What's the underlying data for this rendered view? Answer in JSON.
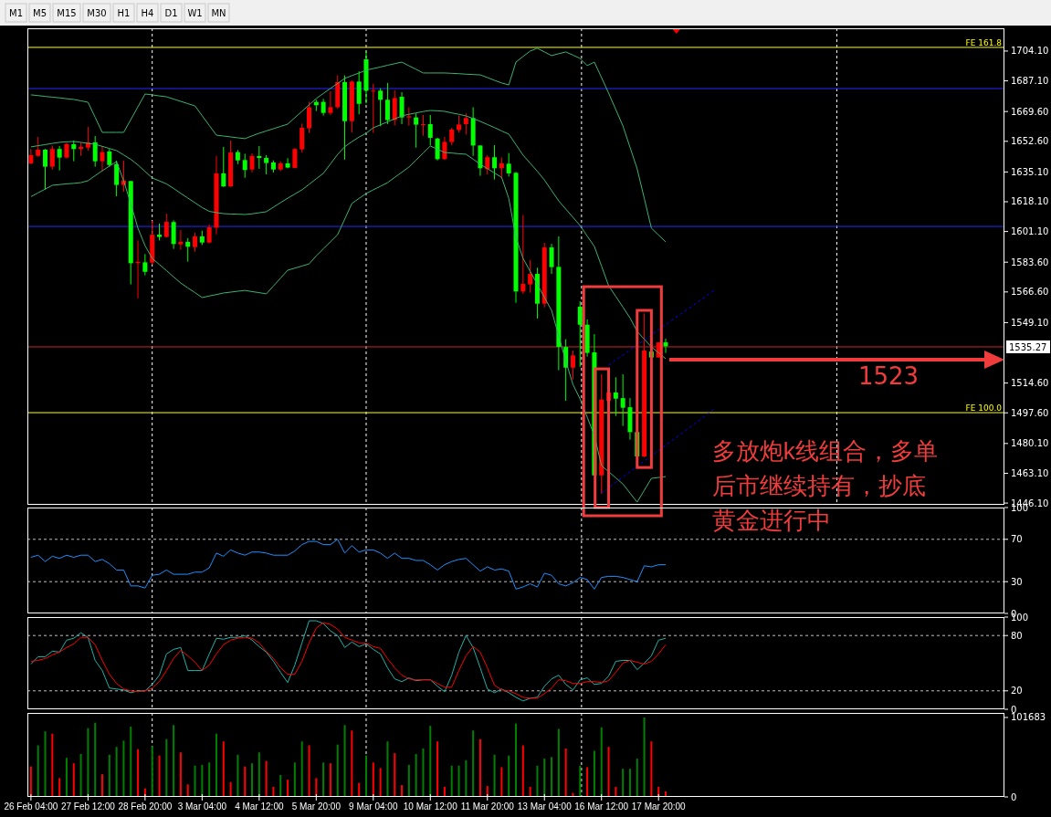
{
  "chart_data": [
    {
      "type": "candlestick",
      "tick_labels": "y",
      "ylim": [
        1445.1,
        1717.1
      ],
      "ohlc": [
        [
          1644.7,
          1648.2,
          1639.5,
          1640.0
        ],
        [
          1647.8,
          1655.1,
          1643.8,
          1644.3
        ],
        [
          1638.1,
          1648.2,
          1625.0,
          1647.8
        ],
        [
          1648.2,
          1650.2,
          1636.5,
          1638.1
        ],
        [
          1643.3,
          1649.9,
          1636.0,
          1648.2
        ],
        [
          1651.1,
          1651.6,
          1642.9,
          1643.3
        ],
        [
          1648.2,
          1653.0,
          1641.2,
          1650.9
        ],
        [
          1649.4,
          1652.0,
          1644.3,
          1648.2
        ],
        [
          1652.0,
          1660.8,
          1647.3,
          1649.0
        ],
        [
          1641.2,
          1655.6,
          1638.1,
          1652.0
        ],
        [
          1646.4,
          1649.9,
          1635.6,
          1641.2
        ],
        [
          1639.1,
          1648.2,
          1638.1,
          1646.8
        ],
        [
          1627.7,
          1641.6,
          1621.2,
          1639.5
        ],
        [
          1630.3,
          1641.6,
          1623.8,
          1627.7
        ],
        [
          1583.0,
          1629.9,
          1570.9,
          1629.9
        ],
        [
          1583.7,
          1596.0,
          1563.0,
          1583.0
        ],
        [
          1578.1,
          1588.2,
          1576.1,
          1583.5
        ],
        [
          1599.3,
          1607.2,
          1582.2,
          1583.4
        ],
        [
          1598.0,
          1605.6,
          1596.0,
          1599.3
        ],
        [
          1606.6,
          1611.3,
          1597.8,
          1598.0
        ],
        [
          1594.0,
          1607.5,
          1591.2,
          1606.5
        ],
        [
          1595.2,
          1601.9,
          1590.7,
          1593.8
        ],
        [
          1592.4,
          1597.3,
          1583.9,
          1595.2
        ],
        [
          1598.3,
          1600.4,
          1589.6,
          1592.2
        ],
        [
          1594.8,
          1601.6,
          1593.4,
          1598.3
        ],
        [
          1603.5,
          1605.1,
          1594.3,
          1594.8
        ],
        [
          1634.3,
          1644.2,
          1599.5,
          1603.3
        ],
        [
          1626.8,
          1649.4,
          1626.6,
          1634.3
        ],
        [
          1646.2,
          1653.0,
          1626.6,
          1626.8
        ],
        [
          1641.7,
          1647.6,
          1639.6,
          1646.4
        ],
        [
          1636.2,
          1645.5,
          1631.8,
          1641.9
        ],
        [
          1644.2,
          1645.7,
          1634.8,
          1636.5
        ],
        [
          1643.1,
          1649.9,
          1636.9,
          1644.2
        ],
        [
          1640.2,
          1644.7,
          1633.7,
          1643.1
        ],
        [
          1636.5,
          1641.7,
          1634.8,
          1640.5
        ],
        [
          1640.0,
          1641.0,
          1635.6,
          1636.5
        ],
        [
          1637.6,
          1642.9,
          1637.2,
          1640.0
        ],
        [
          1648.2,
          1648.7,
          1637.2,
          1637.4
        ],
        [
          1660.3,
          1662.7,
          1646.1,
          1648.0
        ],
        [
          1672.0,
          1675.1,
          1657.4,
          1660.0
        ],
        [
          1673.2,
          1676.3,
          1669.9,
          1675.1
        ],
        [
          1668.8,
          1676.8,
          1667.3,
          1675.1
        ],
        [
          1672.1,
          1681.2,
          1667.6,
          1668.8
        ],
        [
          1686.4,
          1690.2,
          1671.1,
          1672.1
        ],
        [
          1664.1,
          1690.2,
          1642.1,
          1686.4
        ],
        [
          1686.7,
          1687.3,
          1657.7,
          1664.1
        ],
        [
          1674.0,
          1692.5,
          1668.1,
          1686.7
        ],
        [
          1681.5,
          1703.7,
          1674.2,
          1699.4
        ],
        [
          1681.5,
          1685.5,
          1657.4,
          1681.2
        ],
        [
          1676.3,
          1682.9,
          1661.2,
          1681.5
        ],
        [
          1664.7,
          1685.9,
          1662.4,
          1676.3
        ],
        [
          1677.3,
          1681.7,
          1661.7,
          1664.7
        ],
        [
          1666.2,
          1680.6,
          1662.4,
          1678.0
        ],
        [
          1666.9,
          1672.0,
          1661.5,
          1666.2
        ],
        [
          1662.1,
          1668.5,
          1649.0,
          1666.2
        ],
        [
          1662.4,
          1667.6,
          1655.8,
          1662.1
        ],
        [
          1654.6,
          1667.6,
          1650.2,
          1662.4
        ],
        [
          1642.4,
          1654.6,
          1641.7,
          1654.2
        ],
        [
          1652.3,
          1655.1,
          1642.1,
          1642.4
        ],
        [
          1659.3,
          1660.3,
          1650.4,
          1652.2
        ],
        [
          1662.2,
          1667.3,
          1657.7,
          1659.0
        ],
        [
          1665.9,
          1668.5,
          1656.5,
          1662.4
        ],
        [
          1650.2,
          1672.0,
          1644.3,
          1665.9
        ],
        [
          1637.2,
          1650.2,
          1632.9,
          1650.2
        ],
        [
          1643.5,
          1644.7,
          1633.6,
          1636.7
        ],
        [
          1637.2,
          1650.4,
          1630.8,
          1643.5
        ],
        [
          1640.0,
          1643.3,
          1631.3,
          1637.2
        ],
        [
          1634.3,
          1645.9,
          1632.5,
          1639.8
        ],
        [
          1566.9,
          1635.1,
          1560.4,
          1634.6
        ],
        [
          1571.2,
          1610.5,
          1565.6,
          1566.9
        ],
        [
          1576.9,
          1584.8,
          1566.2,
          1570.9
        ],
        [
          1559.9,
          1580.4,
          1551.4,
          1576.9
        ],
        [
          1592.0,
          1594.6,
          1557.8,
          1559.9
        ],
        [
          1580.8,
          1594.0,
          1576.9,
          1592.0
        ],
        [
          1535.2,
          1598.3,
          1521.9,
          1580.9
        ],
        [
          1523.4,
          1539.6,
          1504.5,
          1535.2
        ],
        [
          1530.4,
          1533.2,
          1516.6,
          1523.4
        ],
        [
          1547.9,
          1561.3,
          1523.9,
          1558.2
        ],
        [
          1531.8,
          1550.9,
          1529.7,
          1547.9
        ],
        [
          1461.9,
          1542.5,
          1461.9,
          1532.1
        ],
        [
          1505.2,
          1519.6,
          1451.3,
          1461.9
        ],
        [
          1509.2,
          1509.2,
          1504.5,
          1504.5
        ],
        [
          1505.7,
          1517.9,
          1495.8,
          1509.2
        ],
        [
          1500.5,
          1519.6,
          1490.1,
          1506.0
        ],
        [
          1486.6,
          1506.0,
          1482.3,
          1500.8
        ],
        [
          1472.7,
          1486.6,
          1472.7,
          1486.6
        ],
        [
          1533.2,
          1554.3,
          1472.3,
          1472.7
        ],
        [
          1529.2,
          1532.6,
          1529.2,
          1532.6
        ],
        [
          1537.8,
          1537.8,
          1529.2,
          1529.2
        ],
        [
          1535.6,
          1539.9,
          1531.8,
          1537.8
        ],
        null,
        null,
        null,
        null,
        null,
        null,
        null,
        null,
        null,
        null,
        null,
        null,
        null,
        null,
        null,
        null,
        null,
        null,
        null,
        null,
        null,
        null,
        null,
        null,
        null,
        null,
        null,
        null,
        null,
        null,
        null,
        null,
        null,
        null,
        null,
        null,
        null,
        null,
        null,
        null,
        null,
        null,
        null,
        null,
        null,
        null,
        null
      ],
      "colors": [
        "#ff0000",
        "#ff0000",
        "#00ff00",
        "#ff0000",
        "#00ff00",
        "#ff0000",
        "#00ff00",
        "#ff0000",
        "#ff0000",
        "#00ff00",
        "#ff0000",
        "#00ff00",
        "#00ff00",
        "#ff0000",
        "#00ff00",
        "#ff0000",
        "#00ff00",
        "#ff0000",
        "#00ff00",
        "#ff0000",
        "#00ff00",
        "#ff0000",
        "#00ff00",
        "#ff0000",
        "#00ff00",
        "#ff0000",
        "#ff0000",
        "#00ff00",
        "#ff0000",
        "#00ff00",
        "#00ff00",
        "#ff0000",
        "#00ff00",
        "#00ff00",
        "#00ff00",
        "#ff0000",
        "#00ff00",
        "#ff0000",
        "#ff0000",
        "#ff0000",
        "#00ff00",
        "#00ff00",
        "#ff0000",
        "#ff0000",
        "#00ff00",
        "#ff0000",
        "#00ff00",
        "#00ff00",
        "#ff0000",
        "#00ff00",
        "#00ff00",
        "#ff0000",
        "#00ff00",
        "#ff0000",
        "#00ff00",
        "#ff0000",
        "#00ff00",
        "#00ff00",
        "#ff0000",
        "#ff0000",
        "#ff0000",
        "#ff0000",
        "#00ff00",
        "#00ff00",
        "#ff0000",
        "#00ff00",
        "#ff0000",
        "#00ff00",
        "#00ff00",
        "#ff0000",
        "#ff0000",
        "#00ff00",
        "#ff0000",
        "#00ff00",
        "#00ff00",
        "#00ff00",
        "#ff0000",
        "#00ff00",
        "#00ff00",
        "#00ff00",
        "#ff0000",
        "#ff0000",
        "#00ff00",
        "#00ff00",
        "#00ff00",
        "#00ff00",
        "#ff0000",
        "#00ff00",
        "#ff0000",
        "#00ff00",
        null,
        null,
        null,
        null,
        null,
        null,
        null,
        null,
        null,
        null,
        null,
        null,
        null,
        null,
        null,
        null,
        null,
        null,
        null,
        null,
        null,
        null,
        null,
        null,
        null,
        null,
        null,
        null,
        null,
        null,
        null,
        null,
        null,
        null,
        null,
        null,
        null,
        null,
        null,
        null,
        null,
        null,
        null,
        null,
        null,
        null,
        null
      ],
      "series": [
        {
          "type": "line",
          "color": "#3cb371",
          "values": [
            1679.1,
            1678.7,
            1678.2,
            1677.8,
            1677.4,
            1676.9,
            1676.5,
            1675.7,
            1674.9,
            1666.3,
            1657.7,
            1657.7,
            1657.7,
            1657.7,
            1665.0,
            1672.3,
            1679.6,
            1679.1,
            1678.5,
            1678.0,
            1676.7,
            1675.4,
            1674.1,
            1672.8,
            1667.2,
            1661.7,
            1656.1,
            1655.6,
            1655.1,
            1654.6,
            1654.1,
            1655.7,
            1657.2,
            1658.5,
            1659.8,
            1661.1,
            1662.4,
            1666.1,
            1669.7,
            1673.4,
            1677.0,
            1679.9,
            1682.8,
            1685.6,
            1688.5,
            1690.1,
            1691.6,
            1693.2,
            1694.1,
            1695.0,
            1696.0,
            1696.9,
            1697.8,
            1695.7,
            1693.7,
            1691.6,
            1691.6,
            1691.6,
            1691.6,
            1691.4,
            1691.2,
            1690.9,
            1690.7,
            1690.5,
            1689.0,
            1687.4,
            1685.9,
            1684.8,
            1697.8,
            1701.0,
            1704.1,
            1705.7,
            1703.6,
            1701.5,
            1702.6,
            1703.6,
            1701.8,
            1699.9,
            1695.8,
            1697.8,
            1689.0,
            1680.1,
            1670.8,
            1661.4,
            1649.2,
            1636.9,
            1620.0,
            1603.0,
            1599.1,
            1595.2,
            null,
            null,
            null,
            null,
            null,
            null,
            null,
            null,
            null,
            null,
            null,
            null,
            null,
            null,
            null,
            null,
            null,
            null,
            null,
            null,
            null,
            null,
            null,
            null,
            null,
            null,
            null,
            null,
            null,
            null,
            null,
            null,
            null,
            null,
            null,
            null,
            null,
            null,
            null,
            null,
            null,
            null,
            null,
            null,
            null,
            null,
            null
          ]
        },
        {
          "type": "line",
          "color": "#3cb371",
          "values": [
            1649.4,
            1650.1,
            1650.7,
            1651.4,
            1652.0,
            1652.3,
            1652.5,
            1652.0,
            1651.4,
            1650.9,
            1649.7,
            1648.5,
            1647.3,
            1644.8,
            1642.3,
            1639.1,
            1635.4,
            1631.7,
            1630.0,
            1628.3,
            1625.7,
            1622.9,
            1620.2,
            1617.5,
            1614.8,
            1612.6,
            1611.9,
            1611.3,
            1611.1,
            1611.0,
            1610.8,
            1611.2,
            1611.8,
            1612.4,
            1615.0,
            1617.6,
            1620.1,
            1622.5,
            1624.9,
            1628.0,
            1631.2,
            1634.3,
            1639.7,
            1645.1,
            1649.5,
            1652.4,
            1655.0,
            1657.2,
            1660.3,
            1662.0,
            1663.7,
            1665.4,
            1667.1,
            1668.0,
            1668.8,
            1669.6,
            1670.2,
            1670.0,
            1669.7,
            1668.8,
            1668.0,
            1667.1,
            1665.6,
            1664.0,
            1662.2,
            1660.4,
            1658.5,
            1656.7,
            1650.7,
            1644.7,
            1640.1,
            1635.5,
            1630.5,
            1624.5,
            1618.6,
            1613.9,
            1609.2,
            1604.5,
            1598.5,
            1592.6,
            1581.4,
            1570.2,
            1564.1,
            1558.0,
            1551.8,
            1544.1,
            1539.6,
            1535.2,
            1531.9,
            1528.5,
            null,
            null,
            null,
            null,
            null,
            null,
            null,
            null,
            null,
            null,
            null,
            null,
            null,
            null,
            null,
            null,
            null,
            null,
            null,
            null,
            null,
            null,
            null,
            null,
            null,
            null,
            null,
            null,
            null,
            null,
            null,
            null,
            null,
            null,
            null,
            null,
            null,
            null,
            null,
            null,
            null,
            null,
            null,
            null,
            null,
            null,
            null
          ]
        },
        {
          "type": "line",
          "color": "#3cb371",
          "values": [
            1621.0,
            1623.2,
            1625.3,
            1627.5,
            1627.9,
            1628.3,
            1628.6,
            1629.0,
            1630.1,
            1633.0,
            1635.8,
            1638.4,
            1641.0,
            1630.0,
            1617.0,
            1603.0,
            1593.0,
            1585.8,
            1582.3,
            1578.8,
            1575.2,
            1571.7,
            1568.9,
            1566.2,
            1563.4,
            1564.3,
            1565.1,
            1566.0,
            1566.5,
            1567.0,
            1567.5,
            1566.8,
            1566.2,
            1565.5,
            1570.0,
            1574.5,
            1579.0,
            1580.2,
            1581.4,
            1582.6,
            1587.2,
            1591.2,
            1595.3,
            1599.3,
            1608.2,
            1617.1,
            1620.0,
            1622.8,
            1624.9,
            1626.9,
            1629.0,
            1632.0,
            1634.9,
            1637.9,
            1641.9,
            1645.9,
            1649.9,
            1648.1,
            1646.2,
            1645.9,
            1645.5,
            1645.2,
            1642.4,
            1639.5,
            1637.0,
            1634.5,
            1632.0,
            1620.0,
            1597.8,
            1585.8,
            1578.4,
            1571.0,
            1563.5,
            1556.1,
            1541.5,
            1527.0,
            1513.8,
            1505.5,
            1495.1,
            1484.7,
            1467.5,
            1464.0,
            1460.5,
            1457.0,
            1451.8,
            1446.6,
            1453.4,
            1460.2,
            1460.7,
            1461.2,
            null,
            null,
            null,
            null,
            null,
            null,
            null,
            null,
            null,
            null,
            null,
            null,
            null,
            null,
            null,
            null,
            null,
            null,
            null,
            null,
            null,
            null,
            null,
            null,
            null,
            null,
            null,
            null,
            null,
            null,
            null,
            null,
            null,
            null,
            null,
            null,
            null,
            null,
            null,
            null,
            null,
            null,
            null,
            null,
            null,
            null,
            null
          ]
        },
        {
          "type": "line",
          "color": "#0000ff",
          "line_style": "dashed",
          "values": [
            null,
            null,
            null,
            null,
            null,
            null,
            null,
            null,
            null,
            null,
            null,
            null,
            null,
            null,
            null,
            null,
            null,
            null,
            null,
            null,
            null,
            null,
            null,
            null,
            null,
            null,
            null,
            null,
            null,
            null,
            null,
            null,
            null,
            null,
            null,
            null,
            null,
            null,
            null,
            null,
            null,
            null,
            null,
            null,
            null,
            null,
            null,
            null,
            null,
            null,
            null,
            null,
            null,
            null,
            null,
            null,
            null,
            null,
            null,
            null,
            null,
            null,
            null,
            null,
            null,
            null,
            null,
            null,
            null,
            null,
            null,
            null,
            null,
            null,
            null,
            null,
            null,
            null,
            null,
            null,
            null,
            1524.8,
            1527.7,
            1530.6,
            1533.5,
            1536.4,
            1539.2,
            1542.1,
            1545.0,
            1547.9,
            1550.8,
            1553.7,
            1556.6,
            1559.4,
            1562.3,
            1565.2,
            1568.1,
            null,
            null,
            null,
            null,
            null,
            null,
            null,
            null,
            null,
            null,
            null,
            null,
            null,
            null,
            null,
            null,
            null,
            null,
            null,
            null,
            null,
            null,
            null,
            null,
            null,
            null,
            null,
            null,
            null,
            null,
            null,
            null,
            null,
            null,
            null,
            null,
            null,
            null,
            null,
            null
          ]
        },
        {
          "type": "line",
          "color": "#0000ff",
          "line_style": "dashed",
          "values": [
            null,
            null,
            null,
            null,
            null,
            null,
            null,
            null,
            null,
            null,
            null,
            null,
            null,
            null,
            null,
            null,
            null,
            null,
            null,
            null,
            null,
            null,
            null,
            null,
            null,
            null,
            null,
            null,
            null,
            null,
            null,
            null,
            null,
            null,
            null,
            null,
            null,
            null,
            null,
            null,
            null,
            null,
            null,
            null,
            null,
            null,
            null,
            null,
            null,
            null,
            null,
            null,
            null,
            null,
            null,
            null,
            null,
            null,
            null,
            null,
            null,
            null,
            null,
            null,
            null,
            null,
            null,
            null,
            null,
            null,
            null,
            null,
            null,
            null,
            null,
            null,
            null,
            null,
            null,
            null,
            1451.8,
            1454.8,
            1457.9,
            1460.9,
            1463.9,
            1467.0,
            1470.0,
            1473.0,
            1476.1,
            1479.1,
            1482.1,
            1485.1,
            1488.2,
            1491.2,
            1494.2,
            1497.3,
            1500.3,
            null,
            null,
            null,
            null,
            null,
            null,
            null,
            null,
            null,
            null,
            null,
            null,
            null,
            null,
            null,
            null,
            null,
            null,
            null,
            null,
            null,
            null,
            null,
            null,
            null,
            null,
            null,
            null,
            null,
            null,
            null,
            null,
            null,
            null,
            null,
            null,
            null,
            null,
            null,
            null
          ]
        }
      ],
      "yticks": [
        {
          "value": 1704.1,
          "label": "1704.10"
        },
        {
          "value": 1687.1,
          "label": "1687.10"
        },
        {
          "value": 1669.6,
          "label": "1669.60"
        },
        {
          "value": 1652.6,
          "label": "1652.60"
        },
        {
          "value": 1635.1,
          "label": "1635.10"
        },
        {
          "value": 1618.1,
          "label": "1618.10"
        },
        {
          "value": 1601.1,
          "label": "1601.10"
        },
        {
          "value": 1583.6,
          "label": "1583.60"
        },
        {
          "value": 1566.6,
          "label": "1566.60"
        },
        {
          "value": 1549.1,
          "label": "1549.10"
        },
        {
          "value": 1514.6,
          "label": "1514.60"
        },
        {
          "value": 1497.6,
          "label": "1497.60"
        },
        {
          "value": 1480.1,
          "label": "1480.10"
        },
        {
          "value": 1463.1,
          "label": "1463.10"
        },
        {
          "value": 1446.1,
          "label": "1446.10"
        }
      ],
      "ref_lines": [
        {
          "axis": "y",
          "value": 1706.2,
          "label": "FE 161.8",
          "color": "#ffff00"
        },
        {
          "axis": "y",
          "value": 1497.7,
          "label": "FE 100.0",
          "color": "#ffff00"
        },
        {
          "axis": "y",
          "value": 1682.7,
          "color": "#2828ff"
        },
        {
          "axis": "y",
          "value": 1604.0,
          "color": "#2828ff"
        },
        {
          "axis": "y",
          "value": 1535.27,
          "label": "1535.27",
          "color": "#c82828"
        }
      ],
      "annotations": [
        "M1",
        "M5",
        "M15",
        "M30",
        "H1",
        "H4",
        "D1",
        "W1",
        "MN",
        "1523",
        "多放炮k线组合，多单后市继续持有，抄底黄金进行中"
      ]
    },
    {
      "type": "line",
      "tick_labels": "y",
      "ylim": [
        0,
        100
      ],
      "yticks": [
        0,
        30,
        70,
        100
      ],
      "series": [
        {
          "color": "#1e90ff",
          "values": [
            53,
            55,
            49,
            54,
            52,
            55,
            53,
            55,
            55,
            49,
            51,
            47,
            41,
            41,
            26,
            26,
            24,
            36,
            37,
            41,
            37,
            37,
            37,
            39,
            39,
            43,
            57,
            54,
            60,
            57,
            55,
            58,
            58,
            57,
            55,
            55,
            55,
            59,
            65,
            68,
            68,
            65,
            65,
            70,
            57,
            64,
            58,
            60,
            60,
            57,
            52,
            57,
            52,
            52,
            50,
            50,
            46,
            41,
            46,
            49,
            51,
            52,
            46,
            40,
            44,
            41,
            42,
            40,
            23,
            25,
            28,
            25,
            38,
            36,
            28,
            26,
            29,
            34,
            32,
            23,
            34,
            35,
            35,
            34,
            32,
            30,
            45,
            44,
            46,
            46
          ]
        }
      ],
      "ref_lines": [
        {
          "axis": "y",
          "value": 70,
          "color": "#c0c0c0",
          "line_style": "dashed"
        },
        {
          "axis": "y",
          "value": 30,
          "color": "#c0c0c0",
          "line_style": "dashed"
        }
      ]
    },
    {
      "type": "line",
      "tick_labels": "y",
      "ylim": [
        0,
        100
      ],
      "yticks": [
        0,
        20,
        80,
        100
      ],
      "series": [
        {
          "color": "#20b2aa",
          "values": [
            49,
            57,
            57,
            63,
            62,
            75,
            77,
            83,
            78,
            53,
            42,
            23,
            22,
            21,
            18,
            20,
            20,
            27,
            37,
            60,
            65,
            67,
            42,
            42,
            42,
            60,
            77,
            76,
            78,
            78,
            80,
            75,
            68,
            62,
            52,
            40,
            29,
            48,
            72,
            96,
            96,
            93,
            85,
            80,
            67,
            73,
            68,
            71,
            65,
            60,
            45,
            33,
            30,
            34,
            31,
            32,
            32,
            25,
            19,
            37,
            62,
            80,
            67,
            45,
            22,
            18,
            22,
            18,
            13,
            9,
            12,
            13,
            25,
            33,
            37,
            27,
            21,
            32,
            34,
            27,
            28,
            36,
            52,
            53,
            53,
            43,
            50,
            58,
            75,
            77
          ]
        },
        {
          "color": "#ff0000",
          "values": [
            52,
            53,
            55,
            59,
            62,
            67,
            71,
            78,
            78,
            70,
            53,
            38,
            28,
            22,
            20,
            19,
            20,
            23,
            30,
            42,
            55,
            64,
            58,
            51,
            42,
            48,
            60,
            70,
            75,
            77,
            78,
            77,
            72,
            63,
            55,
            45,
            38,
            38,
            52,
            72,
            88,
            94,
            92,
            87,
            78,
            75,
            72,
            72,
            68,
            66,
            55,
            45,
            37,
            33,
            32,
            32,
            32,
            28,
            24,
            24,
            42,
            58,
            68,
            62,
            45,
            26,
            21,
            20,
            17,
            13,
            12,
            12,
            17,
            23,
            32,
            31,
            28,
            28,
            30,
            30,
            29,
            31,
            40,
            50,
            53,
            51,
            49,
            52,
            60,
            70
          ]
        }
      ],
      "ref_lines": [
        {
          "axis": "y",
          "value": 80,
          "color": "#c0c0c0",
          "line_style": "dashed"
        },
        {
          "axis": "y",
          "value": 20,
          "color": "#c0c0c0",
          "line_style": "dashed"
        }
      ]
    },
    {
      "type": "bar",
      "ylim": [
        0,
        107500
      ],
      "yticks": [
        0,
        101683
      ],
      "values": [
        39000,
        66000,
        84000,
        81000,
        24000,
        50000,
        43000,
        55000,
        88000,
        95000,
        29000,
        54000,
        64000,
        72000,
        90000,
        61000,
        11000,
        65000,
        53000,
        74000,
        92000,
        57000,
        16000,
        40000,
        41000,
        44000,
        81000,
        71000,
        19000,
        54000,
        39000,
        43000,
        57000,
        46000,
        13000,
        28000,
        22000,
        44000,
        71000,
        66000,
        24000,
        44000,
        43000,
        67000,
        92000,
        85000,
        18000,
        53000,
        44000,
        37000,
        71000,
        56000,
        15000,
        41000,
        55000,
        62000,
        91000,
        71000,
        13000,
        40000,
        40000,
        47000,
        85000,
        74000,
        14000,
        54000,
        38000,
        53000,
        94000,
        66000,
        13000,
        40000,
        49000,
        51000,
        87000,
        62000,
        5000,
        40000,
        38000,
        59000,
        89000,
        64000,
        13000,
        36000,
        36000,
        49000,
        101683,
        71000,
        13000,
        7000,
        null,
        null,
        null,
        null,
        null,
        null,
        null,
        null,
        null,
        null,
        null,
        null,
        null,
        null,
        null,
        null,
        null,
        null,
        null,
        null,
        null,
        null,
        null,
        null,
        null,
        null,
        null,
        null,
        null,
        null,
        null,
        null,
        null,
        null,
        null,
        null,
        null,
        null,
        null,
        null,
        null,
        null,
        null,
        null,
        null,
        null,
        null
      ],
      "colors": [
        "#ff0000",
        "#008000",
        "#008000",
        "#ff0000",
        "#ff0000",
        "#008000",
        "#ff0000",
        "#008000",
        "#008000",
        "#008000",
        "#ff0000",
        "#008000",
        "#008000",
        "#008000",
        "#008000",
        "#ff0000",
        "#ff0000",
        "#008000",
        "#ff0000",
        "#008000",
        "#008000",
        "#ff0000",
        "#ff0000",
        "#008000",
        "#008000",
        "#008000",
        "#008000",
        "#ff0000",
        "#ff0000",
        "#008000",
        "#ff0000",
        "#008000",
        "#008000",
        "#ff0000",
        "#ff0000",
        "#008000",
        "#ff0000",
        "#008000",
        "#008000",
        "#ff0000",
        "#ff0000",
        "#008000",
        "#ff0000",
        "#008000",
        "#008000",
        "#ff0000",
        "#ff0000",
        "#008000",
        "#ff0000",
        "#ff0000",
        "#008000",
        "#ff0000",
        "#ff0000",
        "#008000",
        "#008000",
        "#008000",
        "#008000",
        "#ff0000",
        "#ff0000",
        "#008000",
        "#008000",
        "#008000",
        "#008000",
        "#ff0000",
        "#ff0000",
        "#008000",
        "#ff0000",
        "#008000",
        "#008000",
        "#ff0000",
        "#ff0000",
        "#008000",
        "#008000",
        "#008000",
        "#008000",
        "#ff0000",
        "#ff0000",
        "#008000",
        "#ff0000",
        "#008000",
        "#008000",
        "#ff0000",
        "#ff0000",
        "#008000",
        "#008000",
        "#008000",
        "#008000",
        "#ff0000",
        "#ff0000",
        "#ff0000",
        null,
        null,
        null,
        null,
        null,
        null,
        null,
        null,
        null,
        null,
        null,
        null,
        null,
        null,
        null,
        null,
        null,
        null,
        null,
        null,
        null,
        null,
        null,
        null,
        null,
        null,
        null,
        null,
        null,
        null,
        null,
        null,
        null,
        null,
        null,
        null,
        null,
        null,
        null,
        null,
        null,
        null,
        null,
        null,
        null,
        null,
        null
      ],
      "categories": [
        "26 Feb 04:00",
        null,
        null,
        null,
        null,
        null,
        null,
        null,
        "27 Feb 12:00",
        null,
        null,
        null,
        null,
        null,
        null,
        null,
        "28 Feb 20:00",
        null,
        null,
        null,
        null,
        null,
        null,
        null,
        "3 Mar 04:00",
        null,
        null,
        null,
        null,
        null,
        null,
        null,
        "4 Mar 12:00",
        null,
        null,
        null,
        null,
        null,
        null,
        null,
        "5 Mar 20:00",
        null,
        null,
        null,
        null,
        null,
        null,
        null,
        "9 Mar 04:00",
        null,
        null,
        null,
        null,
        null,
        null,
        null,
        "10 Mar 12:00",
        null,
        null,
        null,
        null,
        null,
        null,
        null,
        "11 Mar 20:00",
        null,
        null,
        null,
        null,
        null,
        null,
        null,
        "13 Mar 04:00",
        null,
        null,
        null,
        null,
        null,
        null,
        null,
        "16 Mar 12:00",
        null,
        null,
        null,
        null,
        null,
        null,
        null,
        "17 Mar 20:00",
        null,
        null,
        null,
        null,
        null,
        null,
        null,
        null,
        null,
        null,
        null,
        null,
        null,
        null,
        null,
        null,
        null,
        null,
        null,
        null,
        null,
        null,
        null,
        null,
        null,
        null,
        null,
        null,
        null,
        null,
        null,
        null,
        null,
        null,
        null,
        null,
        null,
        null,
        null,
        null,
        null,
        null,
        null,
        null,
        null,
        null,
        null,
        null
      ]
    }
  ]
}
